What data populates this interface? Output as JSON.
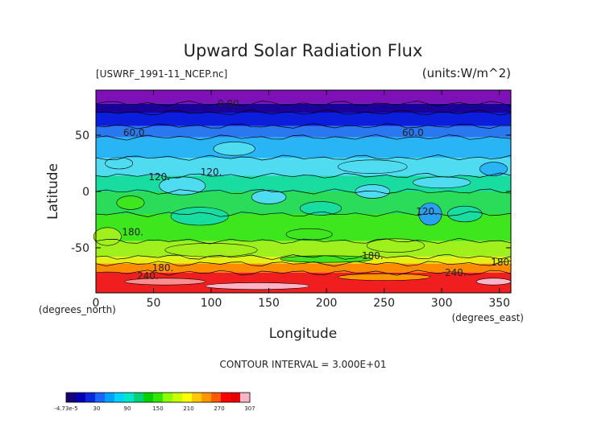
{
  "chart_data": {
    "type": "heatmap",
    "title": "Upward Solar Radiation Flux",
    "subtitle_left": "[USWRF_1991-11_NCEP.nc]",
    "subtitle_right": "(units:W/m^2)",
    "xlabel": "Longitude",
    "ylabel": "Latitude",
    "xunit": "(degrees_east)",
    "yunit": "(degrees_north)",
    "xlim": [
      0,
      360
    ],
    "ylim": [
      -90,
      90
    ],
    "xticks": [
      0,
      50,
      100,
      150,
      200,
      250,
      300,
      350
    ],
    "yticks": [
      -50,
      0,
      50
    ],
    "contour_interval": "CONTOUR INTERVAL = 3.000E+01",
    "contour_labels": [
      {
        "text": "0.00",
        "x": 115,
        "y": 78
      },
      {
        "text": "60.0",
        "x": 33,
        "y": 52
      },
      {
        "text": "60.0",
        "x": 275,
        "y": 52
      },
      {
        "text": "120.",
        "x": 55,
        "y": 13
      },
      {
        "text": "120.",
        "x": 100,
        "y": 17
      },
      {
        "text": "120.",
        "x": 287,
        "y": -18
      },
      {
        "text": "180.",
        "x": 32,
        "y": -36
      },
      {
        "text": "180.",
        "x": 240,
        "y": -57
      },
      {
        "text": "180.",
        "x": 352,
        "y": -63
      },
      {
        "text": "180.",
        "x": 58,
        "y": -68
      },
      {
        "text": "240.",
        "x": 45,
        "y": -75
      },
      {
        "text": "240.",
        "x": 312,
        "y": -72
      }
    ],
    "colorbar": {
      "tick_labels": [
        "-4.73e-5",
        "30",
        "90",
        "150",
        "210",
        "270",
        "307"
      ],
      "colors": [
        "#1a0078",
        "#0000b4",
        "#0a28dc",
        "#1a64ff",
        "#00a0ff",
        "#00d2ff",
        "#00e6c8",
        "#00d278",
        "#00d200",
        "#32e600",
        "#8cff00",
        "#c8ff00",
        "#ffff00",
        "#ffc800",
        "#ff9600",
        "#ff5a00",
        "#ff0000",
        "#e60000",
        "#ffb4c8"
      ]
    },
    "bands": [
      {
        "lat_top": 90,
        "lat_bottom": 78,
        "color": "#7e10b8"
      },
      {
        "lat_top": 78,
        "lat_bottom": 70,
        "color": "#1a0096"
      },
      {
        "lat_top": 70,
        "lat_bottom": 58,
        "color": "#0a1edc"
      },
      {
        "lat_top": 58,
        "lat_bottom": 48,
        "color": "#2a78f0"
      },
      {
        "lat_top": 48,
        "lat_bottom": 30,
        "color": "#28b4f5"
      },
      {
        "lat_top": 30,
        "lat_bottom": 14,
        "color": "#4fdcf0"
      },
      {
        "lat_top": 14,
        "lat_bottom": 0,
        "color": "#19dca0"
      },
      {
        "lat_top": 0,
        "lat_bottom": -20,
        "color": "#2adc5a"
      },
      {
        "lat_top": -20,
        "lat_bottom": -44,
        "color": "#3ee61e"
      },
      {
        "lat_top": -44,
        "lat_bottom": -58,
        "color": "#a0f01e"
      },
      {
        "lat_top": -58,
        "lat_bottom": -64,
        "color": "#e6f014"
      },
      {
        "lat_top": -64,
        "lat_bottom": -72,
        "color": "#ff8c00"
      },
      {
        "lat_top": -72,
        "lat_bottom": -90,
        "color": "#f01e1e"
      }
    ],
    "blobs": [
      {
        "x": 20,
        "y": 25,
        "rx": 12,
        "ry": 5,
        "color": "#4fdcf0"
      },
      {
        "x": 120,
        "y": 38,
        "rx": 18,
        "ry": 6,
        "color": "#4fdcf0"
      },
      {
        "x": 240,
        "y": 22,
        "rx": 30,
        "ry": 6,
        "color": "#4fdcf0"
      },
      {
        "x": 300,
        "y": 8,
        "rx": 25,
        "ry": 5,
        "color": "#4fdcf0"
      },
      {
        "x": 75,
        "y": 5,
        "rx": 20,
        "ry": 8,
        "color": "#4fdcf0"
      },
      {
        "x": 150,
        "y": -5,
        "rx": 15,
        "ry": 6,
        "color": "#4fdcf0"
      },
      {
        "x": 240,
        "y": 0,
        "rx": 15,
        "ry": 6,
        "color": "#4fdcf0"
      },
      {
        "x": 290,
        "y": -20,
        "rx": 10,
        "ry": 10,
        "color": "#2aa0f0"
      },
      {
        "x": 345,
        "y": 20,
        "rx": 12,
        "ry": 6,
        "color": "#28b4f5"
      },
      {
        "x": 30,
        "y": -10,
        "rx": 12,
        "ry": 6,
        "color": "#3ee61e"
      },
      {
        "x": 90,
        "y": -22,
        "rx": 25,
        "ry": 8,
        "color": "#19dca0"
      },
      {
        "x": 195,
        "y": -15,
        "rx": 18,
        "ry": 6,
        "color": "#19dca0"
      },
      {
        "x": 320,
        "y": -20,
        "rx": 15,
        "ry": 7,
        "color": "#19dca0"
      },
      {
        "x": 10,
        "y": -40,
        "rx": 12,
        "ry": 8,
        "color": "#a0f01e"
      },
      {
        "x": 100,
        "y": -52,
        "rx": 40,
        "ry": 6,
        "color": "#a0f01e"
      },
      {
        "x": 260,
        "y": -48,
        "rx": 25,
        "ry": 6,
        "color": "#a0f01e"
      },
      {
        "x": 185,
        "y": -38,
        "rx": 20,
        "ry": 5,
        "color": "#3ee61e"
      },
      {
        "x": 200,
        "y": -60,
        "rx": 40,
        "ry": 3,
        "color": "#3ee61e"
      },
      {
        "x": 60,
        "y": -80,
        "rx": 35,
        "ry": 3,
        "color": "#ff8c8c"
      },
      {
        "x": 140,
        "y": -84,
        "rx": 45,
        "ry": 3,
        "color": "#ffb4c8"
      },
      {
        "x": 250,
        "y": -76,
        "rx": 40,
        "ry": 3,
        "color": "#ff9600"
      },
      {
        "x": 345,
        "y": -80,
        "rx": 15,
        "ry": 3,
        "color": "#ffb4c8"
      }
    ]
  }
}
